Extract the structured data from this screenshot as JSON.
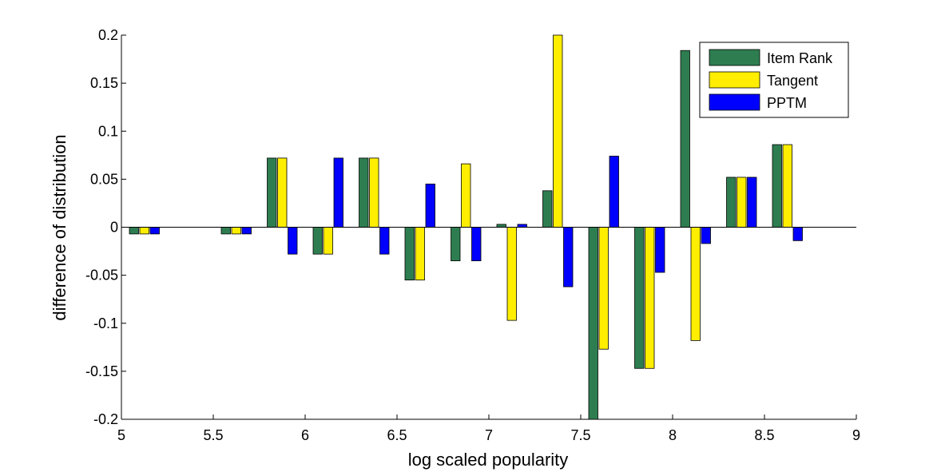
{
  "chart_data": {
    "type": "bar",
    "xlabel": "log scaled popularity",
    "ylabel": "difference of distribution",
    "xlim": [
      5,
      9
    ],
    "ylim": [
      -0.2,
      0.2
    ],
    "xticks": [
      "5",
      "5.5",
      "6",
      "6.5",
      "7",
      "7.5",
      "8",
      "8.5",
      "9"
    ],
    "yticks": [
      "-0.2",
      "-0.15",
      "-0.1",
      "-0.05",
      "0",
      "0.05",
      "0.1",
      "0.15",
      "0.2"
    ],
    "bin_centers": [
      5.125,
      5.375,
      5.625,
      5.875,
      6.125,
      6.375,
      6.625,
      6.875,
      7.125,
      7.375,
      7.625,
      7.875,
      8.125,
      8.375,
      8.625
    ],
    "series": [
      {
        "name": "Item Rank",
        "color": "#2e7d50",
        "values": [
          -0.007,
          0,
          -0.007,
          0.072,
          -0.028,
          0.072,
          -0.055,
          -0.035,
          0.003,
          0.038,
          -0.2,
          -0.147,
          0.184,
          0.052,
          0.086
        ]
      },
      {
        "name": "Tangent",
        "color": "#ffee00",
        "values": [
          -0.007,
          0,
          -0.007,
          0.072,
          -0.028,
          0.072,
          -0.055,
          0.066,
          -0.097,
          0.2,
          -0.127,
          -0.147,
          -0.118,
          0.052,
          0.086
        ]
      },
      {
        "name": "PPTM",
        "color": "#0000ff",
        "values": [
          -0.007,
          0,
          -0.007,
          -0.028,
          0.072,
          -0.028,
          0.045,
          -0.035,
          0.003,
          -0.062,
          0.074,
          -0.047,
          -0.017,
          0.052,
          -0.014
        ]
      }
    ],
    "legend_position": "top-right",
    "grid": false
  }
}
